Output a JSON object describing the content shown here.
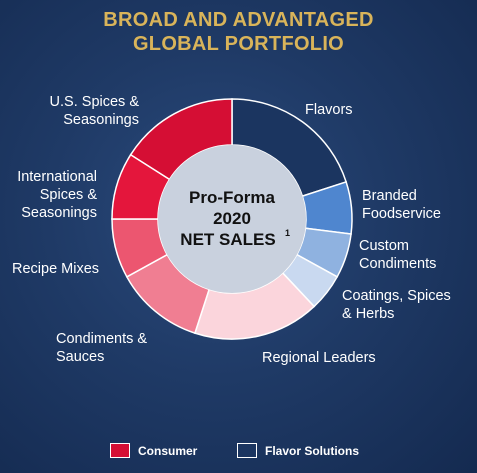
{
  "title": {
    "line1": "BROAD AND ADVANTAGED",
    "line2": "GLOBAL PORTFOLIO"
  },
  "chart_data": {
    "type": "pie",
    "center_label": {
      "line1": "Pro-Forma",
      "line2": "2020",
      "line3": "NET SALES",
      "footnote": "1"
    },
    "slices": [
      {
        "label": [
          "Flavors"
        ],
        "value": 20,
        "segment": "Flavor Solutions",
        "color": "#1b3560"
      },
      {
        "label": [
          "Branded",
          "Foodservice"
        ],
        "value": 7,
        "segment": "Flavor Solutions",
        "color": "#4f86cf"
      },
      {
        "label": [
          "Custom",
          "Condiments"
        ],
        "value": 6,
        "segment": "Flavor Solutions",
        "color": "#8fb2e0"
      },
      {
        "label": [
          "Coatings, Spices",
          "& Herbs"
        ],
        "value": 5,
        "segment": "Flavor Solutions",
        "color": "#c9d9f0"
      },
      {
        "label": [
          "Regional Leaders"
        ],
        "value": 17,
        "segment": "Consumer",
        "color": "#fbd5dc"
      },
      {
        "label": [
          "Condiments &",
          "Sauces"
        ],
        "value": 12,
        "segment": "Consumer",
        "color": "#f07e92"
      },
      {
        "label": [
          "Recipe Mixes"
        ],
        "value": 8,
        "segment": "Consumer",
        "color": "#ec5670"
      },
      {
        "label": [
          "International",
          "Spices &",
          "Seasonings"
        ],
        "value": 9,
        "segment": "Consumer",
        "color": "#e4163c"
      },
      {
        "label": [
          "U.S. Spices &",
          "Seasonings"
        ],
        "value": 16,
        "segment": "Consumer",
        "color": "#d50e34"
      }
    ],
    "legend": [
      {
        "label": "Consumer",
        "color": "#d50e34"
      },
      {
        "label": "Flavor Solutions",
        "color": "#1b3560"
      }
    ]
  }
}
